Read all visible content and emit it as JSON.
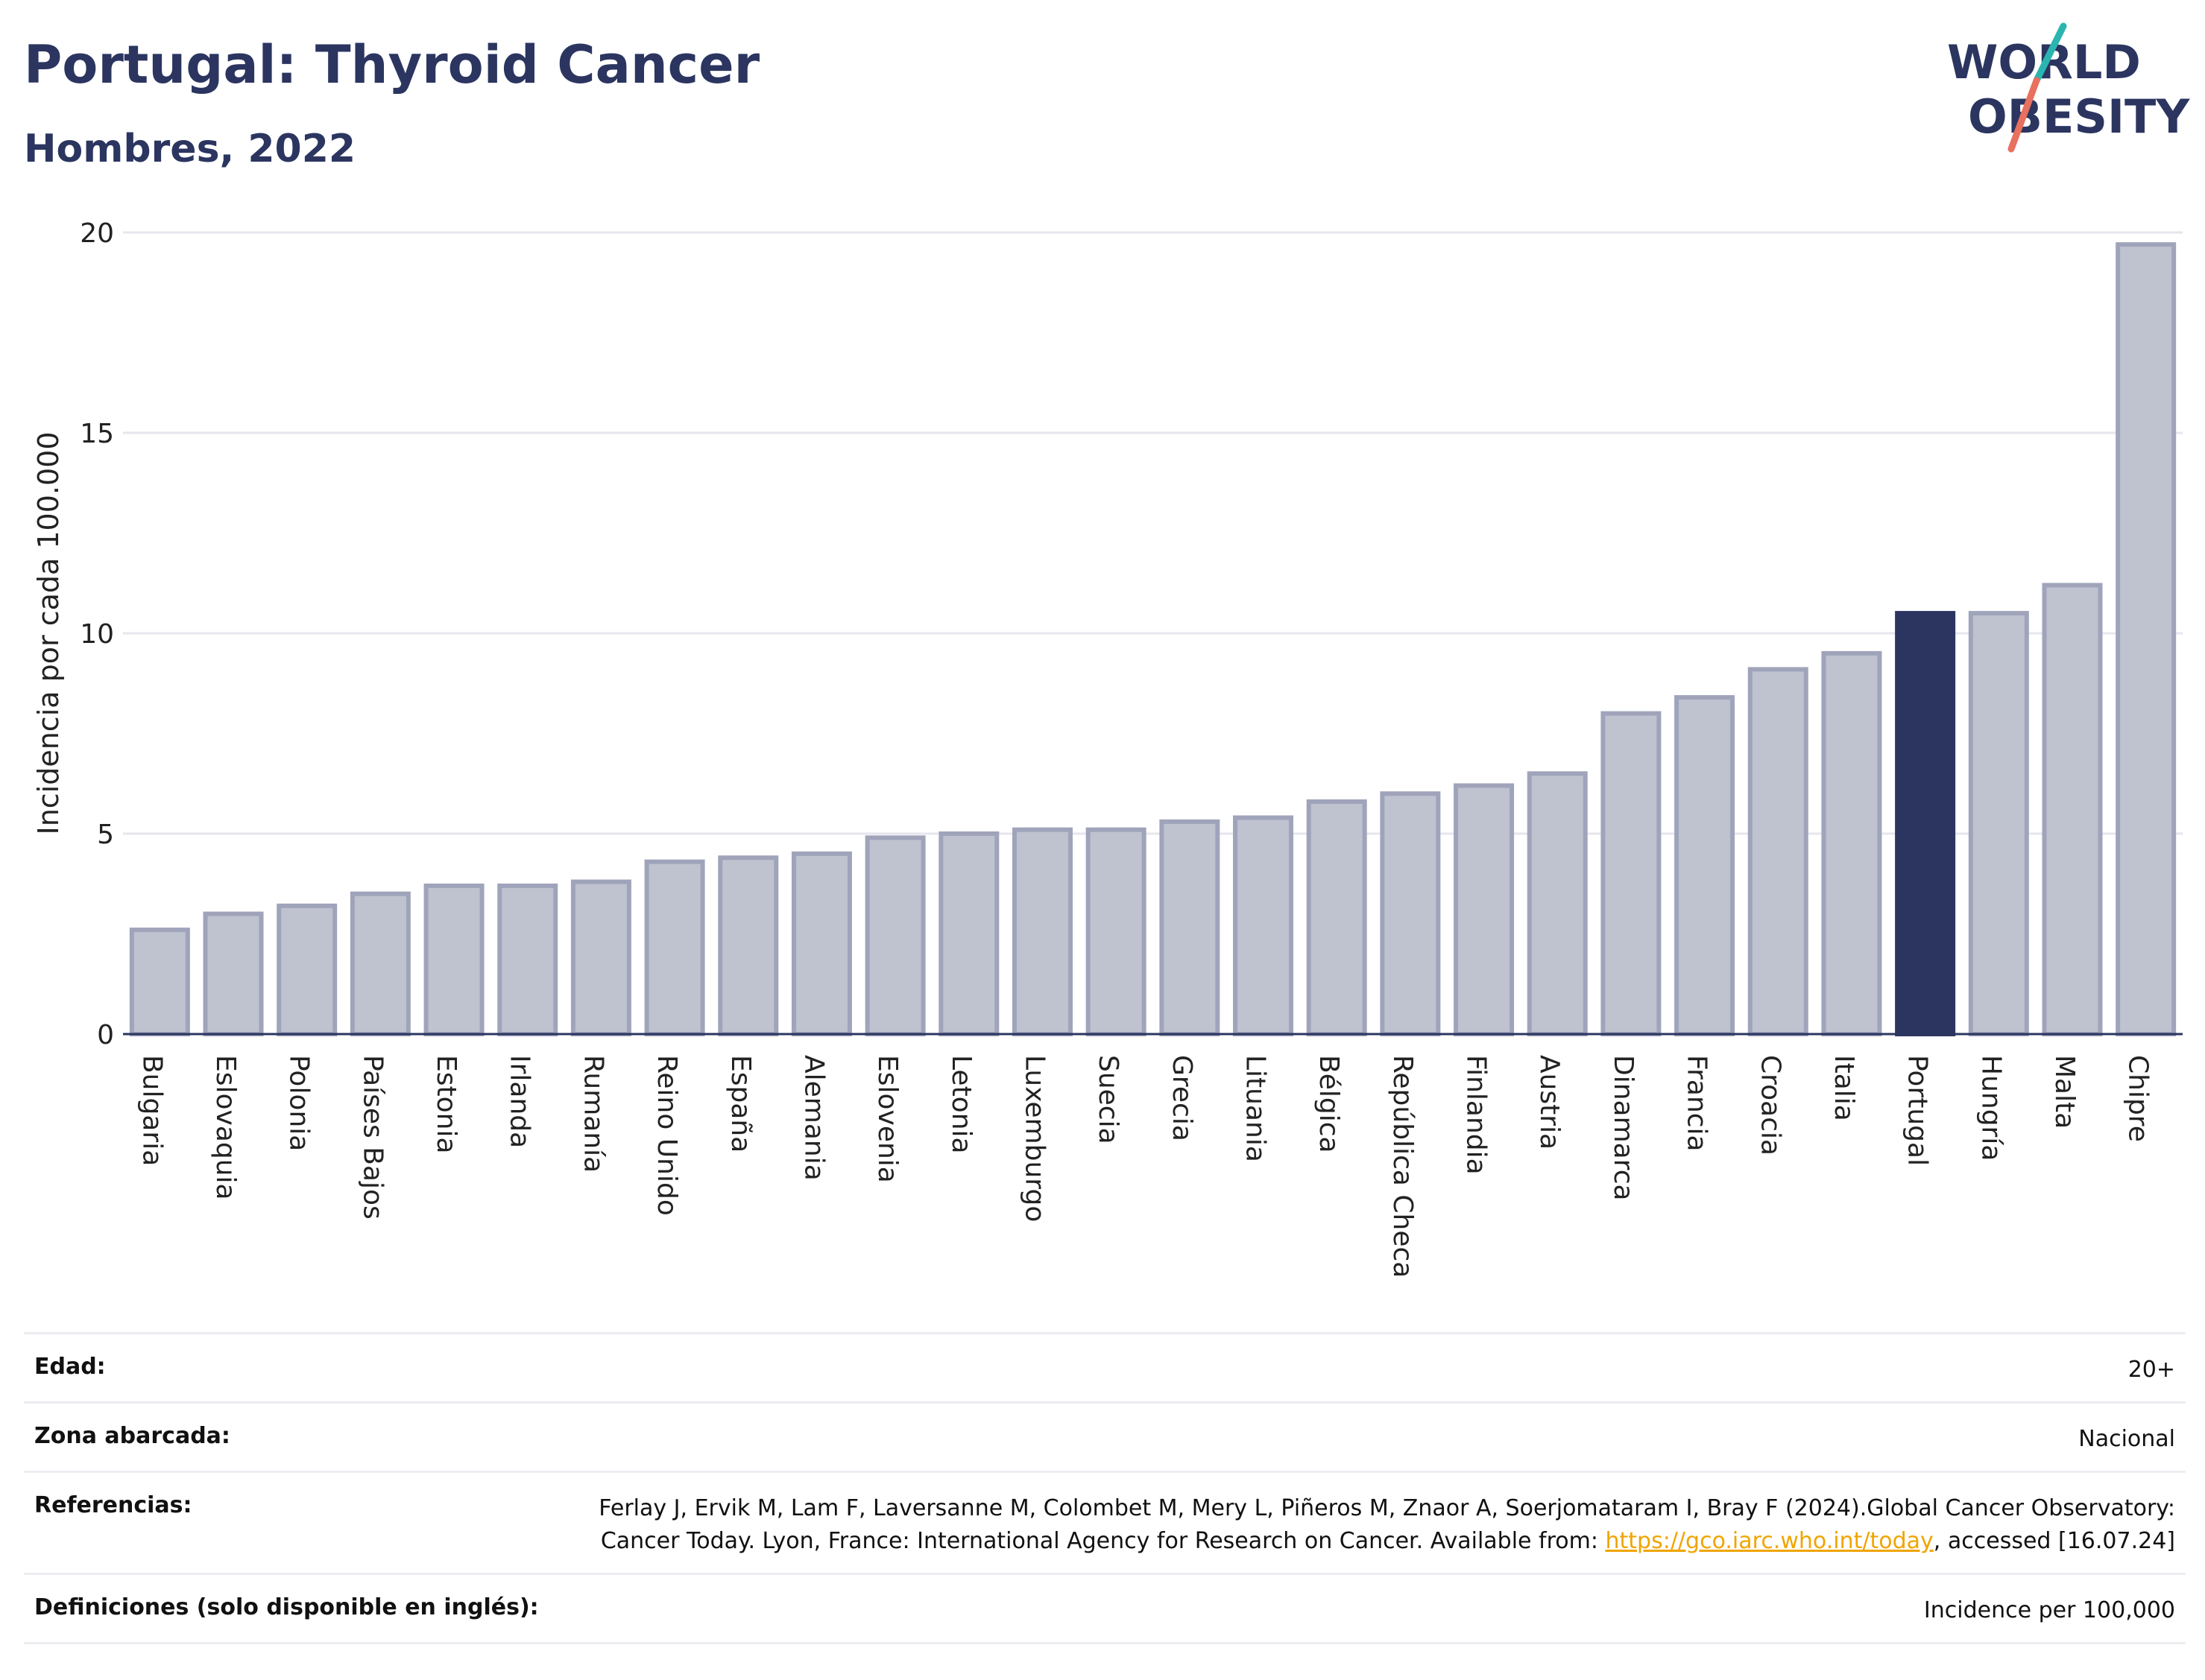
{
  "header": {
    "title": "Portugal: Thyroid Cancer",
    "subtitle": "Hombres, 2022",
    "logo_line1": "WORLD",
    "logo_line2": "OBESITY"
  },
  "chart_data": {
    "type": "bar",
    "ylabel": "Incidencia por cada 100.000",
    "xlabel": "",
    "ylim": [
      0,
      20
    ],
    "yticks": [
      0,
      5,
      10,
      15,
      20
    ],
    "grid": true,
    "highlight": "Portugal",
    "colors": {
      "bar": "#bfc2cf",
      "bar_edge": "#9fa4bb",
      "highlight": "#2b3560"
    },
    "categories": [
      "Bulgaria",
      "Eslovaquia",
      "Polonia",
      "Países Bajos",
      "Estonia",
      "Irlanda",
      "Rumanía",
      "Reino Unido",
      "España",
      "Alemania",
      "Eslovenia",
      "Letonia",
      "Luxemburgo",
      "Suecia",
      "Grecia",
      "Lituania",
      "Bélgica",
      "República Checa",
      "Finlandia",
      "Austria",
      "Dinamarca",
      "Francia",
      "Croacia",
      "Italia",
      "Portugal",
      "Hungría",
      "Malta",
      "Chipre"
    ],
    "values": [
      2.6,
      3.0,
      3.2,
      3.5,
      3.7,
      3.7,
      3.8,
      4.3,
      4.4,
      4.5,
      4.9,
      5.0,
      5.1,
      5.1,
      5.3,
      5.4,
      5.8,
      6.0,
      6.2,
      6.5,
      8.0,
      8.4,
      9.1,
      9.5,
      10.5,
      10.5,
      11.2,
      19.7
    ]
  },
  "meta": {
    "age_label": "Edad:",
    "age_value": "20+",
    "area_label": "Zona abarcada:",
    "area_value": "Nacional",
    "ref_label": "Referencias:",
    "ref_text_1": "Ferlay J, Ervik M, Lam F, Laversanne M, Colombet M, Mery L, Piñeros M, Znaor A, Soerjomataram I, Bray F (2024).Global Cancer Observatory: Cancer Today. Lyon, France: International Agency for Research on Cancer. Available from: ",
    "ref_link": "https://gco.iarc.who.int/today",
    "ref_text_2": ", accessed [16.07.24]",
    "def_label": "Definiciones (solo disponible en inglés):",
    "def_value": "Incidence per 100,000"
  }
}
